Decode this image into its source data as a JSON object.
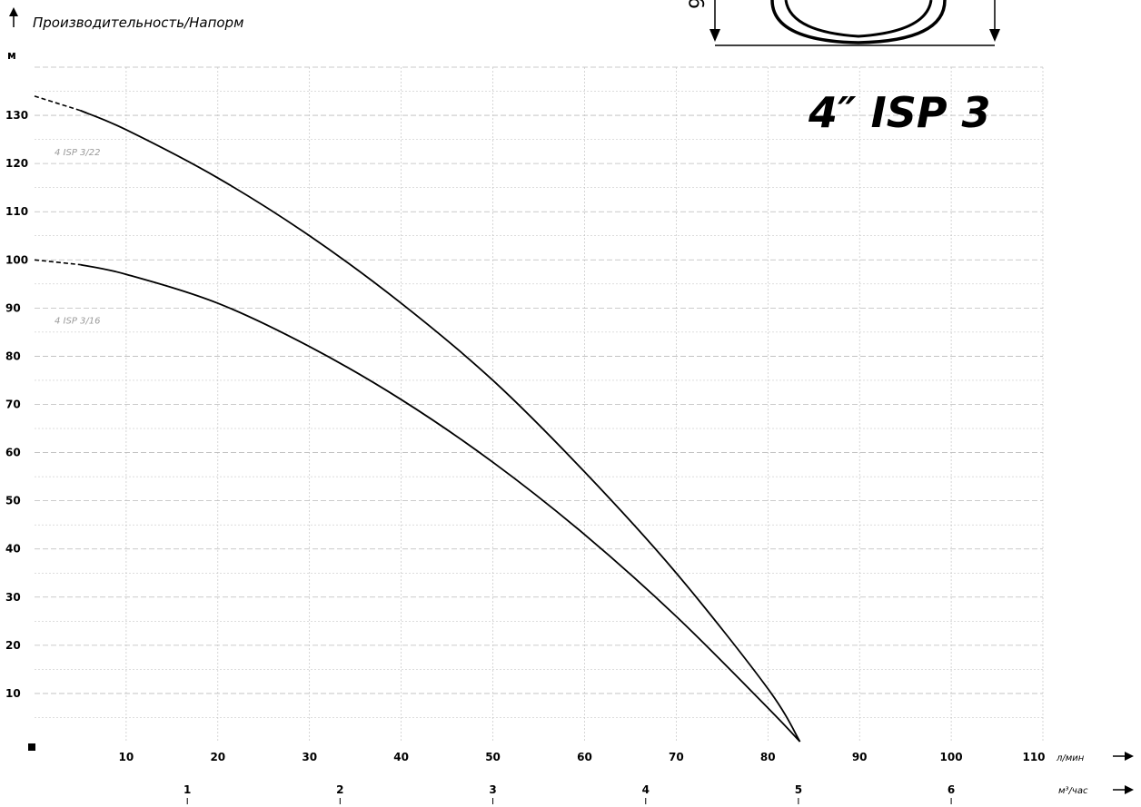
{
  "chart_data": {
    "type": "line",
    "title": "4″ ISP 3",
    "ylabel": "Производительность/Напорм",
    "y_unit": "м",
    "xlabel": "л/мин",
    "x2label": "м³/час",
    "xlim": [
      0,
      110
    ],
    "ylim": [
      0,
      140
    ],
    "x_ticks": [
      "10",
      "20",
      "30",
      "40",
      "50",
      "60",
      "70",
      "80",
      "90",
      "100",
      "110"
    ],
    "x2_ticks": [
      "1",
      "2",
      "3",
      "4",
      "5",
      "6"
    ],
    "x2_tick_values_lpm": [
      16.67,
      33.33,
      50,
      66.67,
      83.33,
      100
    ],
    "y_ticks": [
      "10",
      "20",
      "30",
      "40",
      "50",
      "60",
      "70",
      "80",
      "90",
      "100",
      "110",
      "120",
      "130"
    ],
    "grid": true,
    "series": [
      {
        "name": "4 ISP 3/22",
        "x": [
          0,
          5,
          10,
          20,
          30,
          40,
          50,
          60,
          70,
          80,
          83.5
        ],
        "y": [
          134,
          131,
          127,
          117,
          105,
          91,
          75,
          56,
          35,
          11,
          0
        ],
        "dashed_until_x": 5
      },
      {
        "name": "4 ISP 3/16",
        "x": [
          0,
          5,
          10,
          20,
          30,
          40,
          50,
          60,
          70,
          80,
          83.5
        ],
        "y": [
          100,
          99,
          97,
          91,
          82,
          71,
          58,
          43,
          26,
          7,
          0
        ],
        "dashed_until_x": 5
      }
    ],
    "colors": {
      "curve": "#000000",
      "grid": "#bbbbbb",
      "series_label": "#999999"
    }
  }
}
